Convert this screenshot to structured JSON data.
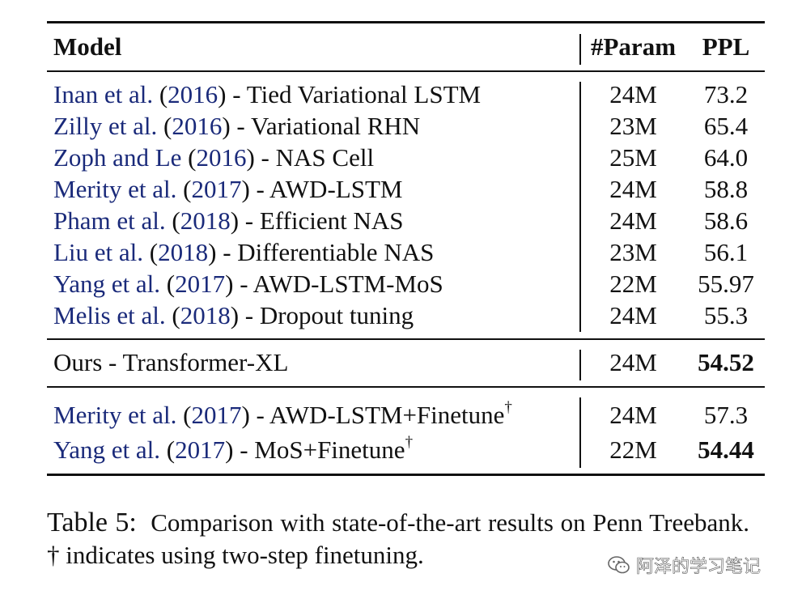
{
  "table": {
    "header": {
      "model": "Model",
      "param": "#Param",
      "ppl": "PPL"
    },
    "group1": [
      {
        "author": "Inan et al.",
        "year": "2016",
        "desc": "Tied Variational LSTM",
        "param": "24M",
        "ppl": "73.2"
      },
      {
        "author": "Zilly et al.",
        "year": "2016",
        "desc": "Variational RHN",
        "param": "23M",
        "ppl": "65.4"
      },
      {
        "author": "Zoph and Le",
        "year": "2016",
        "desc": "NAS Cell",
        "param": "25M",
        "ppl": "64.0"
      },
      {
        "author": "Merity et al.",
        "year": "2017",
        "desc": "AWD-LSTM",
        "param": "24M",
        "ppl": "58.8"
      },
      {
        "author": "Pham et al.",
        "year": "2018",
        "desc": "Efficient NAS",
        "param": "24M",
        "ppl": "58.6"
      },
      {
        "author": "Liu et al.",
        "year": "2018",
        "desc": "Differentiable NAS",
        "param": "23M",
        "ppl": "56.1"
      },
      {
        "author": "Yang et al.",
        "year": "2017",
        "desc": "AWD-LSTM-MoS",
        "param": "22M",
        "ppl": "55.97"
      },
      {
        "author": "Melis et al.",
        "year": "2018",
        "desc": "Dropout tuning",
        "param": "24M",
        "ppl": "55.3"
      }
    ],
    "ours": {
      "model": "Ours - Transformer-XL",
      "param": "24M",
      "ppl": "54.52"
    },
    "group3": [
      {
        "author": "Merity et al.",
        "year": "2017",
        "desc": "AWD-LSTM+Finetune",
        "mark": "†",
        "param": "24M",
        "ppl": "57.3"
      },
      {
        "author": "Yang et al.",
        "year": "2017",
        "desc": "MoS+Finetune",
        "mark": "†",
        "param": "22M",
        "ppl": "54.44"
      }
    ]
  },
  "caption": {
    "label": "Table 5:",
    "text": "Comparison with state-of-the-art results on Penn Treebank. † indicates using two-step finetuning."
  },
  "watermark": {
    "text": "阿泽的学习笔记",
    "icon": "wechat-icon"
  }
}
